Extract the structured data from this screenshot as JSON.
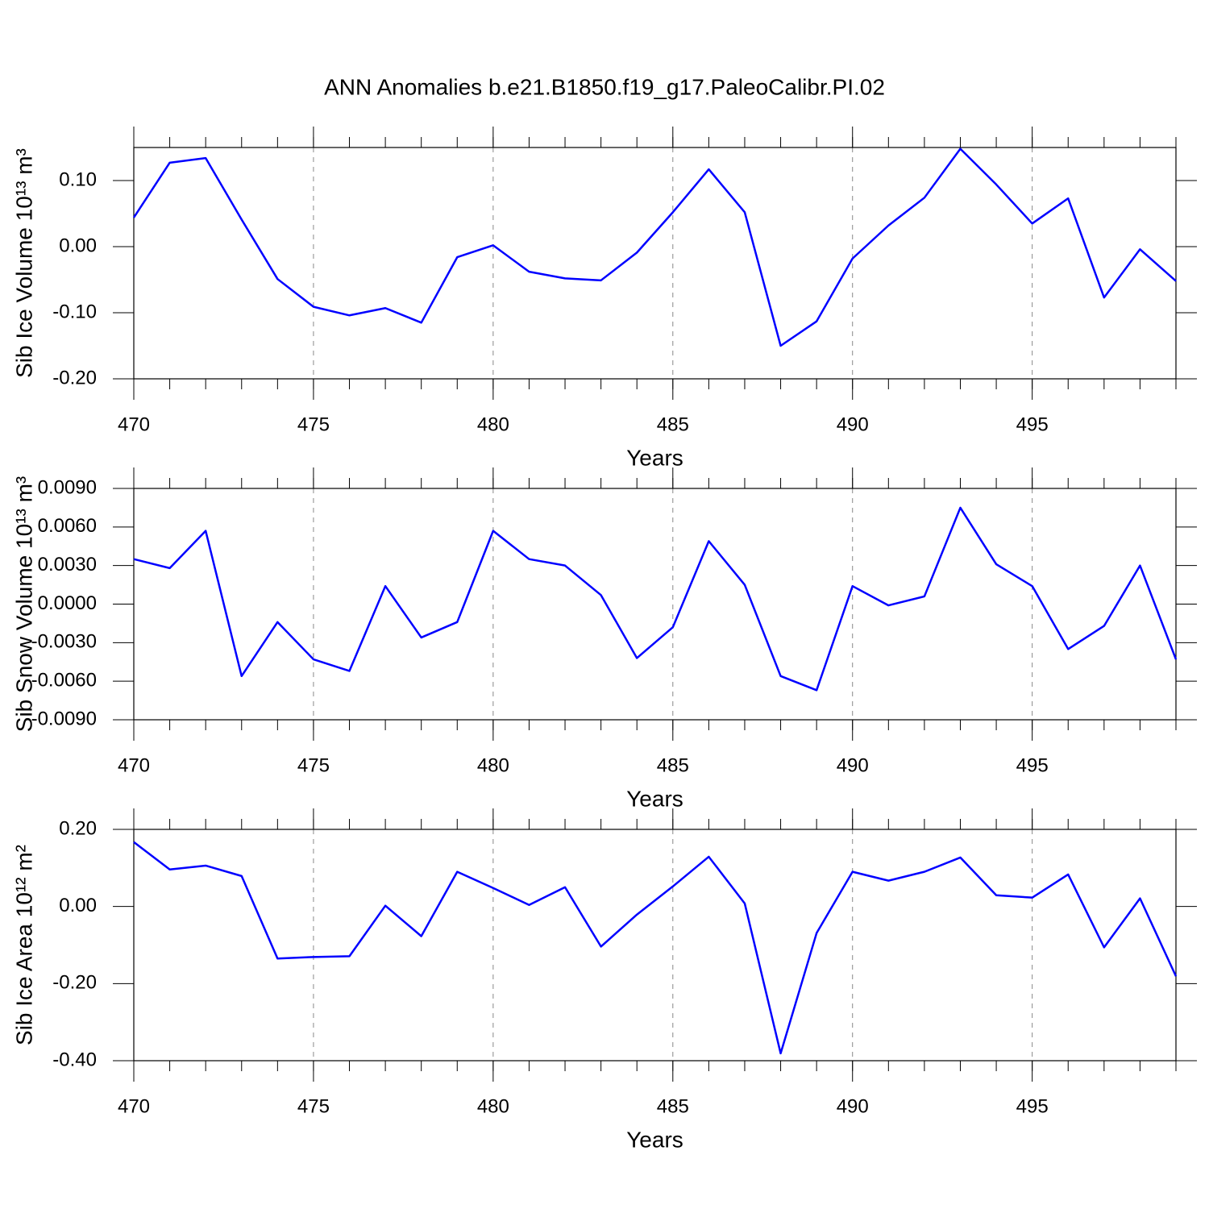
{
  "title": "ANN Anomalies b.e21.B1850.f19_g17.PaleoCalibr.PI.02",
  "chart_data": [
    {
      "type": "line",
      "ylabel": "Sib Ice Volume 10¹³ m³",
      "xlabel": "Years",
      "x": [
        470,
        471,
        472,
        473,
        474,
        475,
        476,
        477,
        478,
        479,
        480,
        481,
        482,
        483,
        484,
        485,
        486,
        487,
        488,
        489,
        490,
        491,
        492,
        493,
        494,
        495,
        496,
        497,
        498,
        499
      ],
      "series": [
        {
          "color": "#0000ff",
          "values": [
            0.044,
            0.127,
            0.134,
            0.041,
            -0.049,
            -0.091,
            -0.104,
            -0.093,
            -0.115,
            -0.016,
            0.002,
            -0.038,
            -0.048,
            -0.051,
            -0.009,
            0.052,
            0.117,
            0.052,
            -0.15,
            -0.113,
            -0.018,
            0.032,
            0.074,
            0.148,
            0.094,
            0.035,
            0.073,
            -0.077,
            -0.004,
            -0.052
          ]
        }
      ],
      "xlim": [
        470,
        499
      ],
      "xticks": [
        470,
        475,
        480,
        485,
        490,
        495
      ],
      "ylim": [
        -0.2,
        0.15
      ],
      "yticks": [
        {
          "value": -0.2,
          "label": "-0.20"
        },
        {
          "value": -0.1,
          "label": "-0.10"
        },
        {
          "value": 0,
          "label": "0.00"
        },
        {
          "value": 0.1,
          "label": "0.10"
        }
      ],
      "grid": "x-dashed"
    },
    {
      "type": "line",
      "ylabel": "Sib Snow Volume 10¹³ m³",
      "xlabel": "Years",
      "x": [
        470,
        471,
        472,
        473,
        474,
        475,
        476,
        477,
        478,
        479,
        480,
        481,
        482,
        483,
        484,
        485,
        486,
        487,
        488,
        489,
        490,
        491,
        492,
        493,
        494,
        495,
        496,
        497,
        498,
        499
      ],
      "series": [
        {
          "color": "#0000ff",
          "values": [
            0.0035,
            0.0028,
            0.0057,
            -0.0056,
            -0.0014,
            -0.0043,
            -0.0052,
            0.0014,
            -0.0026,
            -0.0014,
            0.0057,
            0.0035,
            0.003,
            0.0007,
            -0.0042,
            -0.0018,
            0.0049,
            0.0015,
            -0.0056,
            -0.0067,
            0.0014,
            -0.0001,
            0.0006,
            0.0075,
            0.0031,
            0.0014,
            -0.0035,
            -0.0017,
            0.003,
            -0.0043
          ]
        }
      ],
      "xlim": [
        470,
        499
      ],
      "xticks": [
        470,
        475,
        480,
        485,
        490,
        495
      ],
      "ylim": [
        -0.009,
        0.009
      ],
      "yticks": [
        {
          "value": -0.009,
          "label": "-0.0090"
        },
        {
          "value": -0.006,
          "label": "-0.0060"
        },
        {
          "value": -0.003,
          "label": "-0.0030"
        },
        {
          "value": 0,
          "label": "0.0000"
        },
        {
          "value": 0.003,
          "label": "0.0030"
        },
        {
          "value": 0.006,
          "label": "0.0060"
        },
        {
          "value": 0.009,
          "label": "0.0090"
        }
      ],
      "grid": "x-dashed"
    },
    {
      "type": "line",
      "ylabel": "Sib Ice Area 10¹² m²",
      "xlabel": "Years",
      "x": [
        470,
        471,
        472,
        473,
        474,
        475,
        476,
        477,
        478,
        479,
        480,
        481,
        482,
        483,
        484,
        485,
        486,
        487,
        488,
        489,
        490,
        491,
        492,
        493,
        494,
        495,
        496,
        497,
        498,
        499
      ],
      "series": [
        {
          "color": "#0000ff",
          "values": [
            0.167,
            0.096,
            0.106,
            0.079,
            -0.135,
            -0.131,
            -0.129,
            0.002,
            -0.077,
            0.09,
            0.048,
            0.004,
            0.05,
            -0.104,
            -0.021,
            0.052,
            0.129,
            0.008,
            -0.381,
            -0.069,
            0.09,
            0.067,
            0.09,
            0.127,
            0.029,
            0.023,
            0.083,
            -0.106,
            0.021,
            -0.181
          ]
        }
      ],
      "xlim": [
        470,
        499
      ],
      "xticks": [
        470,
        475,
        480,
        485,
        490,
        495
      ],
      "ylim": [
        -0.4,
        0.2
      ],
      "yticks": [
        {
          "value": -0.4,
          "label": "-0.40"
        },
        {
          "value": -0.2,
          "label": "-0.20"
        },
        {
          "value": 0,
          "label": "0.00"
        },
        {
          "value": 0.2,
          "label": "0.20"
        }
      ],
      "grid": "x-dashed"
    }
  ]
}
